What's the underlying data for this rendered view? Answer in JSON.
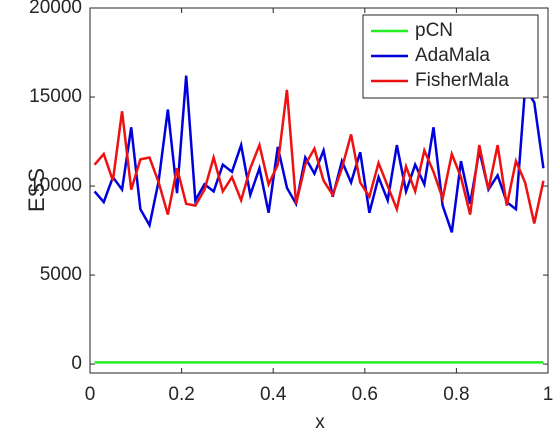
{
  "chart_data": {
    "type": "line",
    "xlabel": "x",
    "ylabel": "ESS",
    "x": [
      0.01,
      0.03,
      0.05,
      0.07,
      0.09,
      0.11,
      0.13,
      0.15,
      0.17,
      0.19,
      0.21,
      0.23,
      0.25,
      0.27,
      0.29,
      0.31,
      0.33,
      0.35,
      0.37,
      0.39,
      0.41,
      0.43,
      0.45,
      0.47,
      0.49,
      0.51,
      0.53,
      0.55,
      0.57,
      0.59,
      0.61,
      0.63,
      0.65,
      0.67,
      0.69,
      0.71,
      0.73,
      0.75,
      0.77,
      0.79,
      0.81,
      0.83,
      0.85,
      0.87,
      0.89,
      0.91,
      0.93,
      0.95,
      0.97,
      0.99
    ],
    "series": [
      {
        "name": "pCN",
        "color": "#22ee22",
        "values": [
          100,
          100,
          100,
          100,
          100,
          100,
          100,
          100,
          100,
          100,
          100,
          100,
          100,
          100,
          100,
          100,
          100,
          100,
          100,
          100,
          100,
          100,
          100,
          100,
          100,
          100,
          100,
          100,
          100,
          100,
          100,
          100,
          100,
          100,
          100,
          100,
          100,
          100,
          100,
          100,
          100,
          100,
          100,
          100,
          100,
          100,
          100,
          100,
          100,
          100
        ]
      },
      {
        "name": "AdaMala",
        "color": "#0000dd",
        "values": [
          9700,
          9100,
          10500,
          9800,
          13300,
          8700,
          7800,
          10300,
          14300,
          9600,
          16200,
          9200,
          10100,
          9700,
          11200,
          10800,
          12300,
          9500,
          11000,
          8500,
          12200,
          9900,
          9000,
          11600,
          10700,
          12000,
          9400,
          11400,
          10200,
          11900,
          8500,
          10500,
          9200,
          12300,
          9700,
          11200,
          10100,
          13300,
          8900,
          7400,
          11400,
          9000,
          12000,
          9800,
          10600,
          9100,
          8700,
          15500,
          14700,
          11000
        ]
      },
      {
        "name": "FisherMala",
        "color": "#ee1111",
        "values": [
          11200,
          11800,
          10300,
          14200,
          9800,
          11500,
          11600,
          10200,
          8400,
          11000,
          9000,
          8900,
          9800,
          11600,
          9700,
          10500,
          9200,
          11000,
          12300,
          10100,
          11200,
          15400,
          9000,
          11200,
          12100,
          10300,
          9500,
          11000,
          12900,
          10200,
          9400,
          11300,
          10000,
          8700,
          11100,
          9700,
          12000,
          10800,
          9300,
          11800,
          10500,
          8400,
          12300,
          9800,
          12300,
          8900,
          11400,
          10200,
          7900,
          10300
        ]
      }
    ],
    "xlim": [
      0,
      1
    ],
    "ylim": [
      -500,
      20000
    ],
    "xticks": [
      0,
      0.2,
      0.4,
      0.6,
      0.8,
      1
    ],
    "yticks": [
      0,
      5000,
      10000,
      15000,
      20000
    ],
    "legend": "upper right"
  }
}
